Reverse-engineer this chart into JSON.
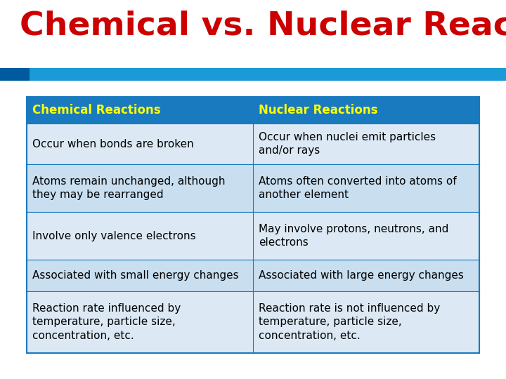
{
  "title": "Chemical vs. Nuclear Reactions",
  "title_color": "#cc0000",
  "title_fontsize": 34,
  "background_color": "#ffffff",
  "header_bg": "#1a7abf",
  "header_text_color": "#ffff00",
  "header_labels": [
    "Chemical Reactions",
    "Nuclear Reactions"
  ],
  "row_alt1_bg": "#c9dff0",
  "row_alt2_bg": "#dce9f5",
  "stripe_blue_main": "#1a9ad7",
  "stripe_blue_dark": "#005a9e",
  "table_border": "#1a7abf",
  "rows": [
    [
      "Occur when bonds are broken",
      "Occur when nuclei emit particles\nand/or rays"
    ],
    [
      "Atoms remain unchanged, although\nthey may be rearranged",
      "Atoms often converted into atoms of\nanother element"
    ],
    [
      "Involve only valence electrons",
      "May involve protons, neutrons, and\nelectrons"
    ],
    [
      "Associated with small energy changes",
      "Associated with large energy changes"
    ],
    [
      "Reaction rate influenced by\ntemperature, particle size,\nconcentration, etc.",
      "Reaction rate is not influenced by\ntemperature, particle size,\nconcentration, etc."
    ]
  ],
  "cell_text_color": "#000000",
  "cell_fontsize": 11,
  "header_fontsize": 12
}
